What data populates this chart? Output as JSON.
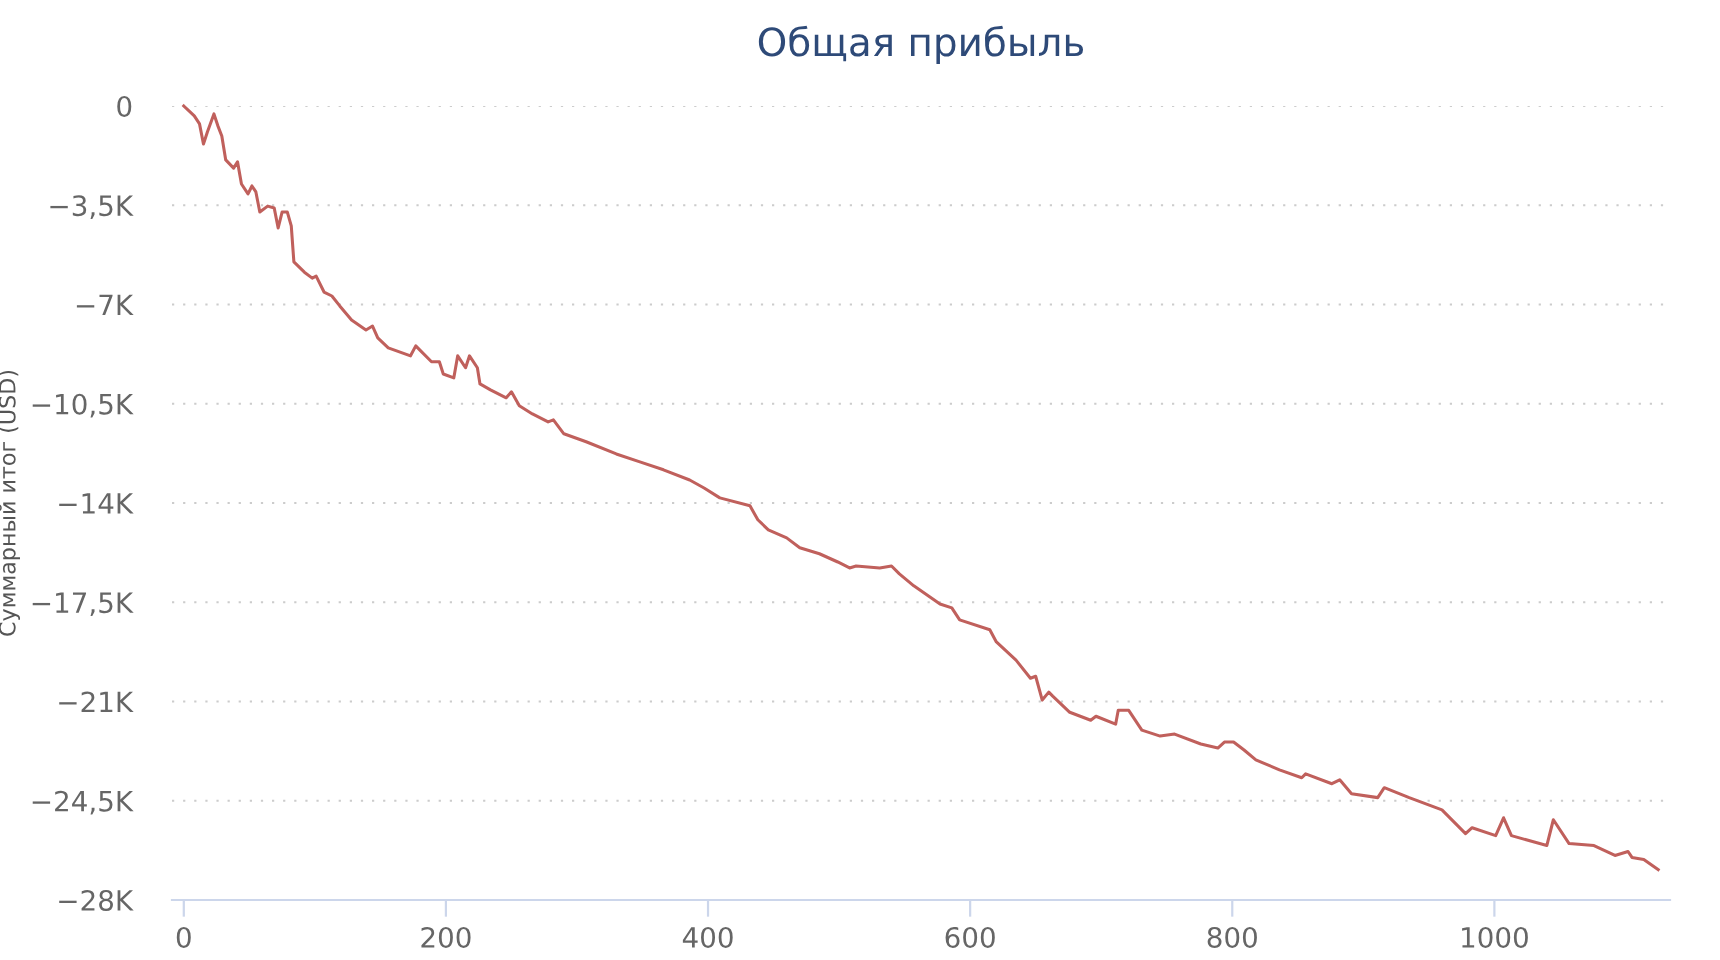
{
  "chart_data": {
    "type": "line",
    "title": "Общая прибыль",
    "ylabel": "Суммарный итог (USD)",
    "x": [
      0,
      8,
      12,
      15,
      18,
      23,
      26,
      29,
      32,
      38,
      41,
      44,
      49,
      52,
      55,
      58,
      64,
      69,
      72,
      75,
      79,
      82,
      84,
      92,
      98,
      101,
      107,
      113,
      119,
      128,
      139,
      144,
      148,
      156,
      173,
      177,
      180,
      189,
      195,
      198,
      206,
      209,
      215,
      218,
      224,
      226,
      234,
      246,
      250,
      256,
      266,
      278,
      282,
      290,
      307,
      330,
      348,
      366,
      386,
      397,
      409,
      432,
      438,
      446,
      460,
      470,
      485,
      499,
      508,
      513,
      531,
      540,
      546,
      557,
      577,
      586,
      592,
      615,
      620,
      635,
      646,
      650,
      655,
      660,
      663,
      676,
      692,
      696,
      711,
      713,
      721,
      731,
      745,
      756,
      776,
      789,
      794,
      801,
      809,
      818,
      836,
      853,
      856,
      876,
      882,
      891,
      911,
      916,
      935,
      960,
      978,
      983,
      1001,
      1007,
      1013,
      1040,
      1045,
      1057,
      1076,
      1092,
      1102,
      1105,
      1114,
      1125
    ],
    "series": [
      {
        "color": "#c0605c",
        "values": [
          0,
          -350,
          -630,
          -1340,
          -920,
          -280,
          -700,
          -1060,
          -1900,
          -2190,
          -1970,
          -2750,
          -3100,
          -2820,
          -3030,
          -3740,
          -3530,
          -3600,
          -4300,
          -3740,
          -3740,
          -4230,
          -5500,
          -5860,
          -6070,
          -6000,
          -6560,
          -6700,
          -7050,
          -7550,
          -7900,
          -7760,
          -8180,
          -8530,
          -8810,
          -8460,
          -8600,
          -9020,
          -9020,
          -9450,
          -9590,
          -8810,
          -9230,
          -8810,
          -9230,
          -9800,
          -10010,
          -10290,
          -10080,
          -10570,
          -10860,
          -11140,
          -11070,
          -11560,
          -11840,
          -12270,
          -12550,
          -12830,
          -13190,
          -13470,
          -13820,
          -14100,
          -14590,
          -14950,
          -15230,
          -15580,
          -15790,
          -16080,
          -16290,
          -16220,
          -16290,
          -16220,
          -16500,
          -16920,
          -17560,
          -17700,
          -18120,
          -18470,
          -18900,
          -19540,
          -20180,
          -20110,
          -20950,
          -20670,
          -20810,
          -21380,
          -21660,
          -21520,
          -21800,
          -21310,
          -21310,
          -22010,
          -22220,
          -22150,
          -22500,
          -22640,
          -22430,
          -22430,
          -22710,
          -23060,
          -23410,
          -23690,
          -23550,
          -23900,
          -23760,
          -24250,
          -24390,
          -24040,
          -24390,
          -24820,
          -25660,
          -25450,
          -25730,
          -25100,
          -25730,
          -26080,
          -25170,
          -26010,
          -26080,
          -26430,
          -26290,
          -26500,
          -26570,
          -26930
        ]
      }
    ],
    "xlim": [
      -9,
      1134
    ],
    "xticks": [
      0,
      200,
      400,
      600,
      800,
      1000
    ],
    "ylim": [
      -28000,
      0
    ],
    "yticks": [
      {
        "value": 0,
        "label": "0"
      },
      {
        "value": -3500,
        "label": "−3,5K"
      },
      {
        "value": -7000,
        "label": "−7K"
      },
      {
        "value": -10500,
        "label": "−10,5K"
      },
      {
        "value": -14000,
        "label": "−14K"
      },
      {
        "value": -17500,
        "label": "−17,5K"
      },
      {
        "value": -21000,
        "label": "−21K"
      },
      {
        "value": -24500,
        "label": "−24,5K"
      },
      {
        "value": -28000,
        "label": "−28K"
      }
    ],
    "grid": "y",
    "legend": false,
    "marker": "none",
    "line_style": "solid"
  }
}
